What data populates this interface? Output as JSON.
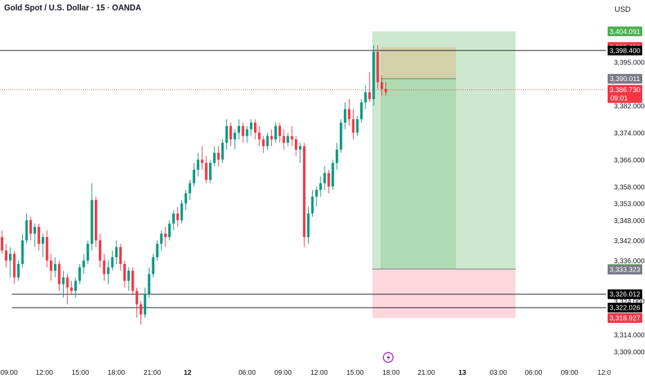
{
  "header": {
    "title": "Gold Spot / U.S. Dollar · 15 · OANDA",
    "currency": "USD"
  },
  "chart_data": {
    "type": "candlestick",
    "title": "Gold Spot / U.S. Dollar · 15 · OANDA",
    "ylabel": "USD",
    "ylim": [
      3306,
      3406
    ],
    "x_ticks": [
      "09:00",
      "12:00",
      "15:00",
      "18:00",
      "21:00",
      "12",
      "06:00",
      "09:00",
      "12:00",
      "15:00",
      "18:00",
      "21:00",
      "13",
      "03:00",
      "06:00",
      "09:00",
      "12:0"
    ],
    "y_ticks": [
      {
        "value": 3395,
        "label": "3,395.000"
      },
      {
        "value": 3382,
        "label": "3,382.000"
      },
      {
        "value": 3374,
        "label": "3,374.000"
      },
      {
        "value": 3366,
        "label": "3,366.000"
      },
      {
        "value": 3358,
        "label": "3,358.000"
      },
      {
        "value": 3353,
        "label": "3,353.000"
      },
      {
        "value": 3348,
        "label": "3,348.000"
      },
      {
        "value": 3342,
        "label": "3,342.000"
      },
      {
        "value": 3336,
        "label": "3,336.000"
      },
      {
        "value": 3324,
        "label": "3,324.000"
      },
      {
        "value": 3314,
        "label": "3,314.000"
      },
      {
        "value": 3309,
        "label": "3,309.000"
      }
    ],
    "horizontal_lines": [
      3398.4,
      3326.012,
      3322.026
    ],
    "current_price": {
      "value": 3386.73,
      "label": "3,386.730",
      "countdown": "09:01"
    },
    "price_labels": [
      {
        "value": 3404.091,
        "label": "3,404.091",
        "color": "#4caf50"
      },
      {
        "value": 3399.456,
        "label": "3,399.456",
        "color": "#f23645"
      },
      {
        "value": 3398.4,
        "label": "3,398.400",
        "color": "#000000"
      },
      {
        "value": 3390.011,
        "label": "3,390.011",
        "color": "#787b86"
      },
      {
        "value": 3333.497,
        "label": "3,333.497",
        "color": "#4caf50"
      },
      {
        "value": 3333.323,
        "label": "3,333.323",
        "color": "#787b86"
      },
      {
        "value": 3326.012,
        "label": "3,326.012",
        "color": "#000000"
      },
      {
        "value": 3322.026,
        "label": "3,322.026",
        "color": "#000000"
      },
      {
        "value": 3318.927,
        "label": "3,318.927",
        "color": "#f23645"
      }
    ],
    "position": {
      "entry": 3333.497,
      "target": 3404.091,
      "stop": 3318.927,
      "active_low": 3390.011,
      "active_high": 3399.456
    },
    "colors": {
      "up": "#089981",
      "down": "#f23645",
      "profit": "#c8e6c9",
      "loss": "#fcd4d9"
    },
    "candles": [
      [
        3343,
        3345,
        3338,
        3339
      ],
      [
        3339,
        3341,
        3334,
        3336
      ],
      [
        3336,
        3340,
        3331,
        3338
      ],
      [
        3338,
        3339,
        3329,
        3331
      ],
      [
        3331,
        3336,
        3330,
        3335
      ],
      [
        3335,
        3344,
        3334,
        3342
      ],
      [
        3342,
        3350,
        3341,
        3348
      ],
      [
        3348,
        3349,
        3342,
        3344
      ],
      [
        3344,
        3347,
        3340,
        3346
      ],
      [
        3346,
        3347,
        3339,
        3341
      ],
      [
        3341,
        3344,
        3337,
        3343
      ],
      [
        3343,
        3345,
        3334,
        3336
      ],
      [
        3336,
        3338,
        3330,
        3333
      ],
      [
        3333,
        3337,
        3331,
        3335
      ],
      [
        3335,
        3336,
        3327,
        3329
      ],
      [
        3329,
        3333,
        3325,
        3331
      ],
      [
        3331,
        3332,
        3323,
        3328
      ],
      [
        3328,
        3330,
        3326,
        3327
      ],
      [
        3327,
        3331,
        3325,
        3330
      ],
      [
        3330,
        3335,
        3329,
        3334
      ],
      [
        3334,
        3338,
        3332,
        3336
      ],
      [
        3336,
        3342,
        3335,
        3341
      ],
      [
        3341,
        3359,
        3339,
        3354
      ],
      [
        3354,
        3355,
        3340,
        3342
      ],
      [
        3342,
        3344,
        3334,
        3336
      ],
      [
        3336,
        3338,
        3330,
        3332
      ],
      [
        3332,
        3336,
        3329,
        3334
      ],
      [
        3334,
        3339,
        3333,
        3337
      ],
      [
        3337,
        3342,
        3335,
        3340
      ],
      [
        3340,
        3341,
        3333,
        3335
      ],
      [
        3335,
        3336,
        3328,
        3330
      ],
      [
        3330,
        3334,
        3327,
        3333
      ],
      [
        3333,
        3334,
        3326,
        3327
      ],
      [
        3327,
        3328,
        3319,
        3323
      ],
      [
        3323,
        3324,
        3317,
        3320
      ],
      [
        3320,
        3328,
        3319,
        3326
      ],
      [
        3326,
        3334,
        3325,
        3332
      ],
      [
        3332,
        3338,
        3331,
        3337
      ],
      [
        3337,
        3342,
        3336,
        3341
      ],
      [
        3341,
        3345,
        3339,
        3344
      ],
      [
        3344,
        3346,
        3340,
        3343
      ],
      [
        3343,
        3348,
        3342,
        3347
      ],
      [
        3347,
        3351,
        3345,
        3350
      ],
      [
        3350,
        3352,
        3346,
        3348
      ],
      [
        3348,
        3354,
        3347,
        3353
      ],
      [
        3353,
        3357,
        3351,
        3356
      ],
      [
        3356,
        3360,
        3354,
        3359
      ],
      [
        3359,
        3365,
        3358,
        3363
      ],
      [
        3363,
        3368,
        3361,
        3366
      ],
      [
        3366,
        3370,
        3363,
        3365
      ],
      [
        3365,
        3367,
        3359,
        3360
      ],
      [
        3360,
        3366,
        3359,
        3365
      ],
      [
        3365,
        3370,
        3364,
        3368
      ],
      [
        3368,
        3370,
        3364,
        3366
      ],
      [
        3366,
        3372,
        3365,
        3371
      ],
      [
        3371,
        3378,
        3369,
        3376
      ],
      [
        3376,
        3377,
        3370,
        3372
      ],
      [
        3372,
        3375,
        3369,
        3374
      ],
      [
        3374,
        3378,
        3372,
        3376
      ],
      [
        3376,
        3377,
        3371,
        3373
      ],
      [
        3373,
        3376,
        3371,
        3375
      ],
      [
        3375,
        3378,
        3373,
        3377
      ],
      [
        3377,
        3378,
        3372,
        3374
      ],
      [
        3374,
        3376,
        3370,
        3372
      ],
      [
        3372,
        3373,
        3368,
        3370
      ],
      [
        3370,
        3374,
        3369,
        3373
      ],
      [
        3373,
        3375,
        3370,
        3372
      ],
      [
        3372,
        3377,
        3371,
        3376
      ],
      [
        3376,
        3377,
        3371,
        3373
      ],
      [
        3373,
        3375,
        3369,
        3371
      ],
      [
        3371,
        3374,
        3370,
        3373
      ],
      [
        3373,
        3376,
        3370,
        3372
      ],
      [
        3372,
        3373,
        3367,
        3369
      ],
      [
        3369,
        3371,
        3365,
        3370
      ],
      [
        3370,
        3371,
        3340,
        3343
      ],
      [
        3343,
        3352,
        3341,
        3350
      ],
      [
        3350,
        3357,
        3349,
        3355
      ],
      [
        3355,
        3358,
        3352,
        3357
      ],
      [
        3357,
        3361,
        3355,
        3359
      ],
      [
        3359,
        3364,
        3357,
        3362
      ],
      [
        3362,
        3363,
        3356,
        3358
      ],
      [
        3358,
        3366,
        3357,
        3365
      ],
      [
        3365,
        3371,
        3363,
        3369
      ],
      [
        3369,
        3378,
        3368,
        3377
      ],
      [
        3377,
        3383,
        3375,
        3381
      ],
      [
        3381,
        3384,
        3376,
        3378
      ],
      [
        3378,
        3381,
        3372,
        3374
      ],
      [
        3374,
        3379,
        3373,
        3378
      ],
      [
        3378,
        3384,
        3377,
        3383
      ],
      [
        3383,
        3388,
        3381,
        3386
      ],
      [
        3386,
        3392,
        3383,
        3384
      ],
      [
        3384,
        3400,
        3382,
        3398
      ],
      [
        3398,
        3400,
        3387,
        3389
      ],
      [
        3389,
        3391,
        3385,
        3387
      ],
      [
        3387,
        3389,
        3385,
        3386
      ]
    ]
  }
}
